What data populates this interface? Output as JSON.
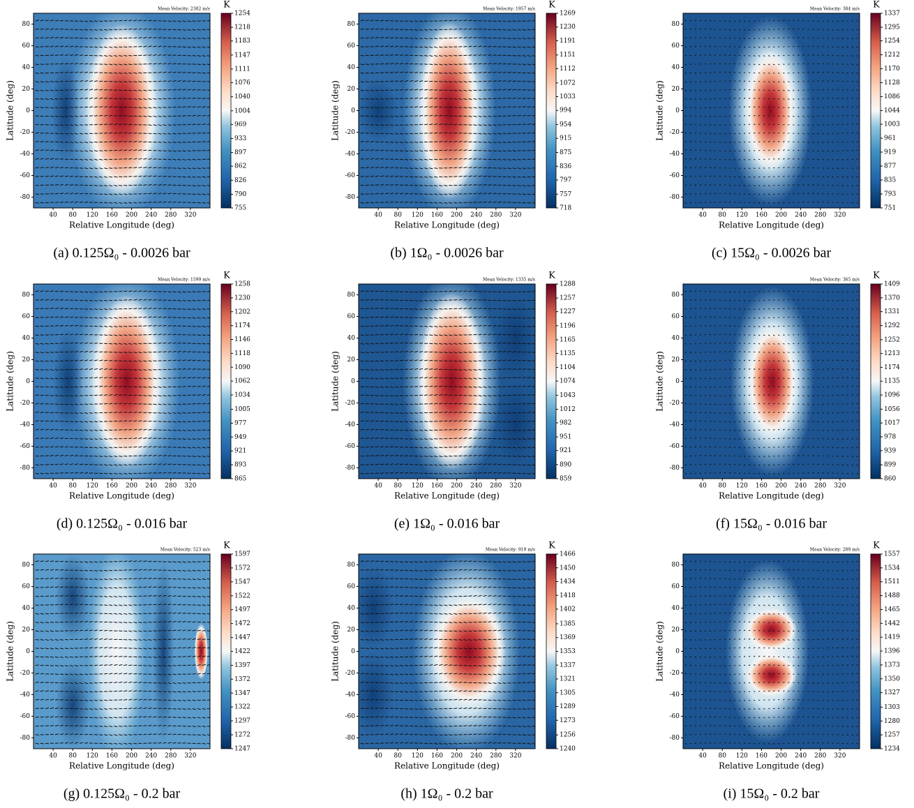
{
  "chart_data": [
    {
      "type": "heatmap",
      "title": "(a) 0.125Ω₀ - 0.0026 bar",
      "annotation": "Mean Velocity: 2302 m/s",
      "xlabel": "Relative Longitude (deg)",
      "ylabel": "Latitude (deg)",
      "xlim": [
        0,
        360
      ],
      "ylim": [
        -90,
        90
      ],
      "xticks": [
        40,
        80,
        120,
        160,
        200,
        240,
        280,
        320
      ],
      "yticks": [
        -80,
        -60,
        -40,
        -20,
        0,
        20,
        40,
        60,
        80
      ],
      "colorbar_label": "K",
      "clim": [
        755,
        1254
      ],
      "cticks": [
        755,
        790,
        826,
        862,
        897,
        933,
        969,
        1004,
        1040,
        1076,
        1111,
        1147,
        1183,
        1218,
        1254
      ]
    },
    {
      "type": "heatmap",
      "title": "(b) 1Ω₀ - 0.0026 bar",
      "annotation": "Mean Velocity: 1957 m/s",
      "xlabel": "Relative Longitude (deg)",
      "ylabel": "Latitude (deg)",
      "xlim": [
        0,
        360
      ],
      "ylim": [
        -90,
        90
      ],
      "xticks": [
        40,
        80,
        120,
        160,
        200,
        240,
        280,
        320
      ],
      "yticks": [
        -80,
        -60,
        -40,
        -20,
        0,
        20,
        40,
        60,
        80
      ],
      "colorbar_label": "K",
      "clim": [
        718,
        1269
      ],
      "cticks": [
        718,
        757,
        797,
        836,
        875,
        915,
        954,
        994,
        1033,
        1072,
        1112,
        1151,
        1191,
        1230,
        1269
      ]
    },
    {
      "type": "heatmap",
      "title": "(c) 15Ω₀ - 0.0026 bar",
      "annotation": "Mean Velocity: 384 m/s",
      "xlabel": "Relative Longitude (deg)",
      "ylabel": "Latitude (deg)",
      "xlim": [
        0,
        360
      ],
      "ylim": [
        -90,
        90
      ],
      "xticks": [
        40,
        80,
        120,
        160,
        200,
        240,
        280,
        320
      ],
      "yticks": [
        -80,
        -60,
        -40,
        -20,
        0,
        20,
        40,
        60,
        80
      ],
      "colorbar_label": "K",
      "clim": [
        751,
        1337
      ],
      "cticks": [
        751,
        793,
        835,
        877,
        919,
        961,
        1003,
        1044,
        1086,
        1128,
        1170,
        1212,
        1254,
        1295,
        1337
      ]
    },
    {
      "type": "heatmap",
      "title": "(d) 0.125Ω₀ - 0.016 bar",
      "annotation": "Mean Velocity: 1599 m/s",
      "xlabel": "Relative Longitude (deg)",
      "ylabel": "Latitude (deg)",
      "xlim": [
        0,
        360
      ],
      "ylim": [
        -90,
        90
      ],
      "xticks": [
        40,
        80,
        120,
        160,
        200,
        240,
        280,
        320
      ],
      "yticks": [
        -80,
        -60,
        -40,
        -20,
        0,
        20,
        40,
        60,
        80
      ],
      "colorbar_label": "K",
      "clim": [
        865,
        1258
      ],
      "cticks": [
        865,
        893,
        921,
        949,
        977,
        1005,
        1034,
        1062,
        1090,
        1118,
        1146,
        1174,
        1202,
        1230,
        1258
      ]
    },
    {
      "type": "heatmap",
      "title": "(e) 1Ω₀ - 0.016 bar",
      "annotation": "Mean Velocity: 1335 m/s",
      "xlabel": "Relative Longitude (deg)",
      "ylabel": "Latitude (deg)",
      "xlim": [
        0,
        360
      ],
      "ylim": [
        -90,
        90
      ],
      "xticks": [
        40,
        80,
        120,
        160,
        200,
        240,
        280,
        320
      ],
      "yticks": [
        -80,
        -60,
        -40,
        -20,
        0,
        20,
        40,
        60,
        80
      ],
      "colorbar_label": "K",
      "clim": [
        859,
        1288
      ],
      "cticks": [
        859,
        890,
        921,
        951,
        982,
        1012,
        1043,
        1074,
        1104,
        1135,
        1165,
        1196,
        1227,
        1257,
        1288
      ]
    },
    {
      "type": "heatmap",
      "title": "(f) 15Ω₀ - 0.016 bar",
      "annotation": "Mean Velocity: 365 m/s",
      "xlabel": "Relative Longitude (deg)",
      "ylabel": "Latitude (deg)",
      "xlim": [
        0,
        360
      ],
      "ylim": [
        -90,
        90
      ],
      "xticks": [
        40,
        80,
        120,
        160,
        200,
        240,
        280,
        320
      ],
      "yticks": [
        -80,
        -60,
        -40,
        -20,
        0,
        20,
        40,
        60,
        80
      ],
      "colorbar_label": "K",
      "clim": [
        860,
        1409
      ],
      "cticks": [
        860,
        899,
        939,
        978,
        1017,
        1056,
        1096,
        1135,
        1174,
        1213,
        1252,
        1292,
        1331,
        1370,
        1409
      ]
    },
    {
      "type": "heatmap",
      "title": "(g) 0.125Ω₀ - 0.2 bar",
      "annotation": "Mean Velocity: 523 m/s",
      "xlabel": "Relative Longitude (deg)",
      "ylabel": "Latitude (deg)",
      "xlim": [
        0,
        360
      ],
      "ylim": [
        -90,
        90
      ],
      "xticks": [
        40,
        80,
        120,
        160,
        200,
        240,
        280,
        320
      ],
      "yticks": [
        -80,
        -60,
        -40,
        -20,
        0,
        20,
        40,
        60,
        80
      ],
      "colorbar_label": "K",
      "clim": [
        1247,
        1597
      ],
      "cticks": [
        1247,
        1272,
        1297,
        1322,
        1347,
        1372,
        1397,
        1422,
        1447,
        1472,
        1497,
        1522,
        1547,
        1572,
        1597
      ]
    },
    {
      "type": "heatmap",
      "title": "(h) 1Ω₀ - 0.2 bar",
      "annotation": "Mean Velocity: 919 m/s",
      "xlabel": "Relative Longitude (deg)",
      "ylabel": "Latitude (deg)",
      "xlim": [
        0,
        360
      ],
      "ylim": [
        -90,
        90
      ],
      "xticks": [
        40,
        80,
        120,
        160,
        200,
        240,
        280,
        320
      ],
      "yticks": [
        -80,
        -60,
        -40,
        -20,
        0,
        20,
        40,
        60,
        80
      ],
      "colorbar_label": "K",
      "clim": [
        1240,
        1466
      ],
      "cticks": [
        1240,
        1256,
        1273,
        1289,
        1305,
        1321,
        1337,
        1353,
        1369,
        1385,
        1402,
        1418,
        1434,
        1450,
        1466
      ]
    },
    {
      "type": "heatmap",
      "title": "(i) 15Ω₀ - 0.2 bar",
      "annotation": "Mean Velocity: 289 m/s",
      "xlabel": "Relative Longitude (deg)",
      "ylabel": "Latitude (deg)",
      "xlim": [
        0,
        360
      ],
      "ylim": [
        -90,
        90
      ],
      "xticks": [
        40,
        80,
        120,
        160,
        200,
        240,
        280,
        320
      ],
      "yticks": [
        -80,
        -60,
        -40,
        -20,
        0,
        20,
        40,
        60,
        80
      ],
      "colorbar_label": "K",
      "clim": [
        1234,
        1557
      ],
      "cticks": [
        1234,
        1257,
        1280,
        1303,
        1327,
        1350,
        1373,
        1396,
        1419,
        1442,
        1465,
        1488,
        1511,
        1534,
        1557
      ]
    }
  ]
}
